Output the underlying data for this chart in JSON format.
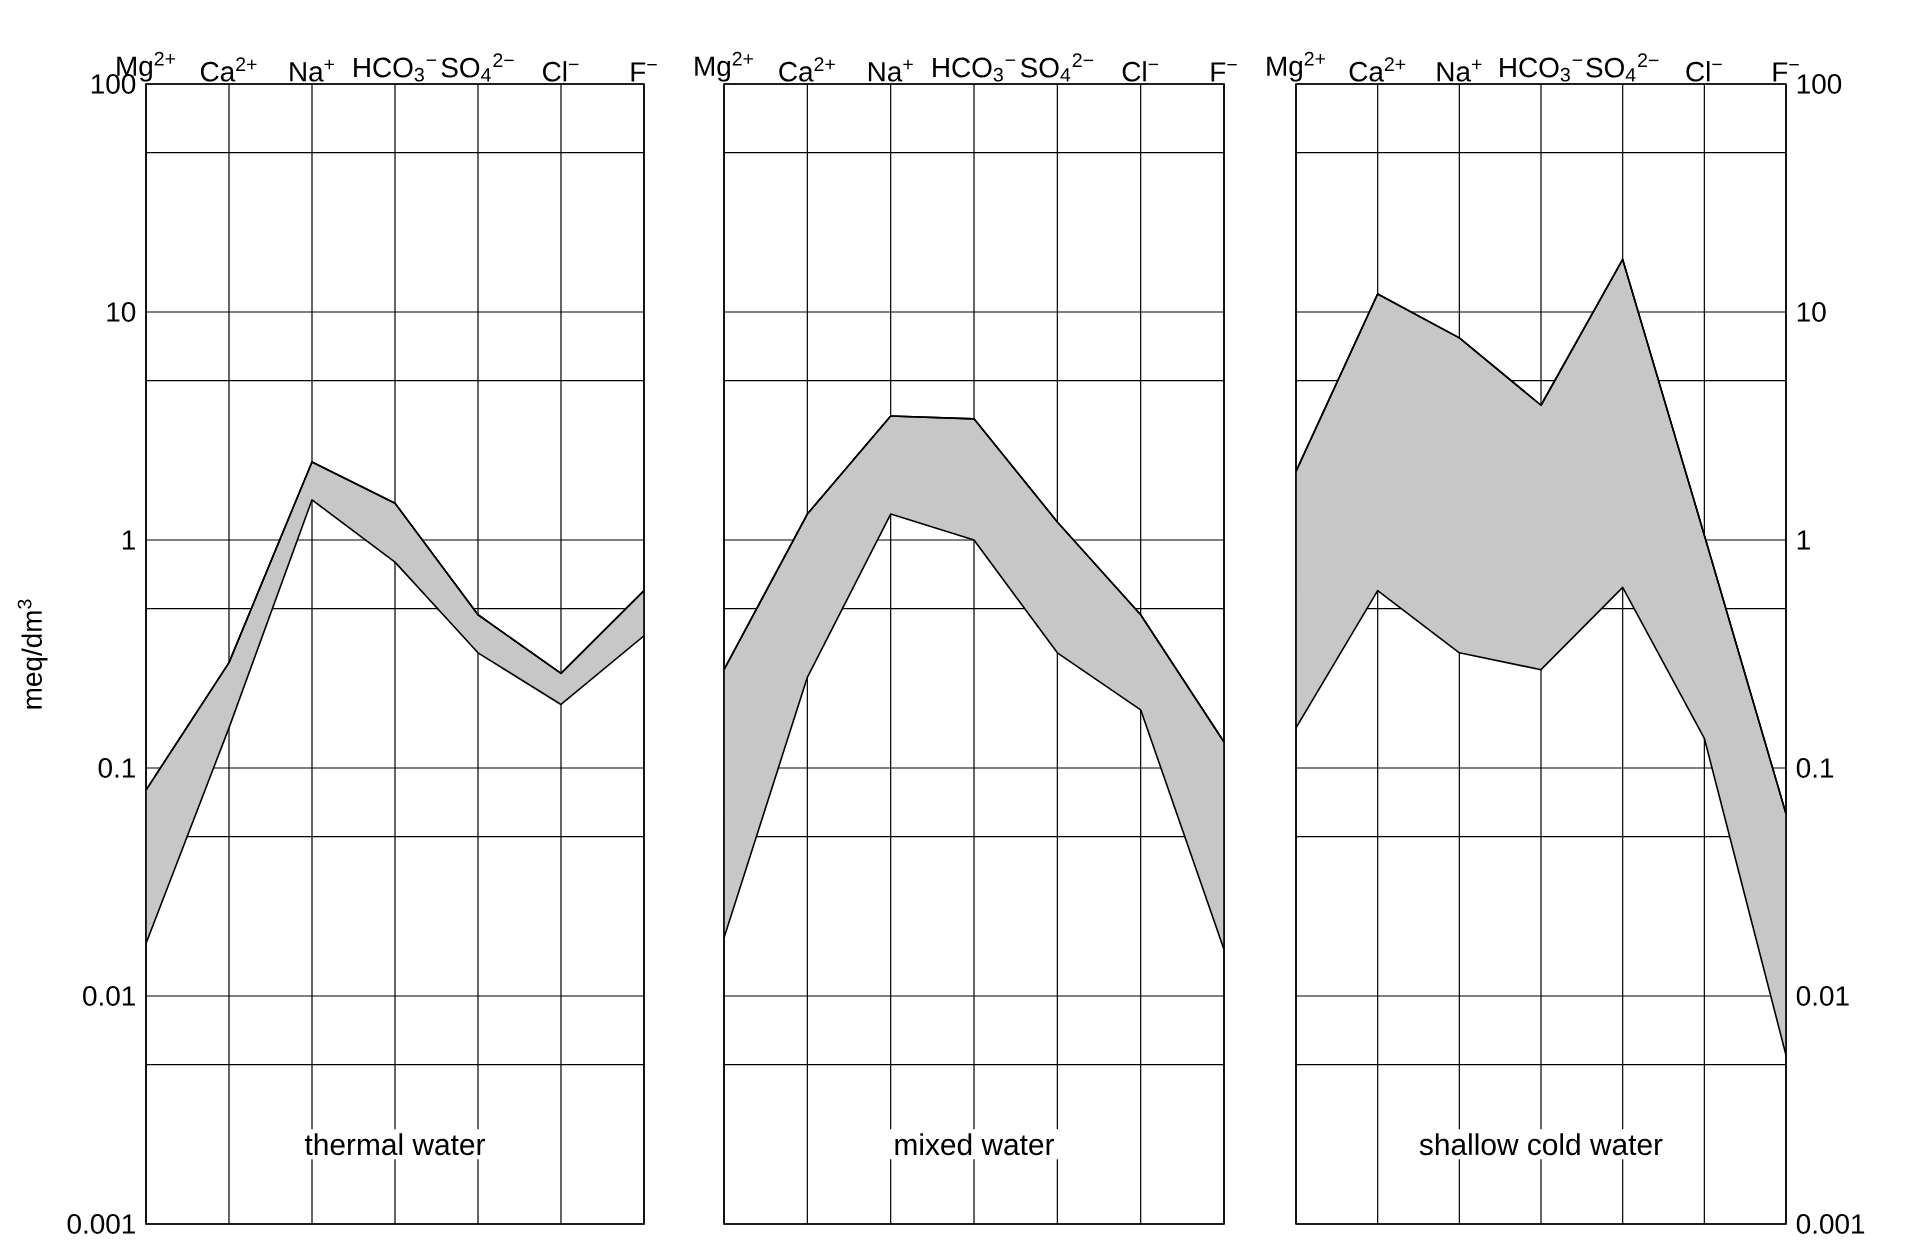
{
  "chart_data": [
    {
      "type": "line",
      "title": "thermal water",
      "ylabel": "meq/dm$^{3}$",
      "categories": [
        "Mg$^{2+}$",
        "Ca$^{2+}$",
        "Na$^{+}$",
        "HCO$_{3}$$^{−}$",
        "SO$_{4}$$^{2−}$",
        "Cl$^{−}$",
        "F$^{−}$"
      ],
      "series": [
        {
          "color": "#000000",
          "values": [
            0.08,
            0.29,
            2.2,
            1.45,
            0.47,
            0.26,
            0.6
          ],
          "lower": [
            0.017,
            0.15,
            1.5,
            0.8,
            0.32,
            0.19,
            0.38
          ],
          "upper": [
            0.08,
            0.29,
            2.2,
            1.45,
            0.47,
            0.26,
            0.6
          ]
        }
      ],
      "log": true,
      "ylim": [
        0.001,
        100
      ],
      "yticks": [
        0.001,
        {
          "value": 0.005,
          "label": null
        },
        0.01,
        {
          "value": 0.05,
          "label": null
        },
        0.1,
        {
          "value": 0.5,
          "label": null
        },
        1,
        {
          "value": 5,
          "label": null
        },
        10,
        {
          "value": 50,
          "label": null
        },
        100
      ],
      "grid": true
    },
    {
      "type": "line",
      "title": "mixed water",
      "categories": [
        "Mg$^{2+}$",
        "Ca$^{2+}$",
        "Na$^{+}$",
        "HCO$_{3}$$^{−}$",
        "SO$_{4}$$^{2−}$",
        "Cl$^{−}$",
        "F$^{−}$"
      ],
      "series": [
        {
          "color": "#000000",
          "values": [
            0.27,
            1.3,
            3.5,
            3.4,
            1.2,
            0.47,
            0.13
          ],
          "lower": [
            0.018,
            0.25,
            1.3,
            1.0,
            0.32,
            0.18,
            0.016
          ],
          "upper": [
            0.27,
            1.3,
            3.5,
            3.4,
            1.2,
            0.47,
            0.13
          ]
        }
      ],
      "log": true,
      "ylim": [
        0.001,
        100
      ],
      "yticks": [
        0.001,
        {
          "value": 0.005,
          "label": null
        },
        0.01,
        {
          "value": 0.05,
          "label": null
        },
        0.1,
        {
          "value": 0.5,
          "label": null
        },
        1,
        {
          "value": 5,
          "label": null
        },
        10,
        {
          "value": 50,
          "label": null
        },
        100
      ],
      "grid": true,
      "tick_labels": "x"
    },
    {
      "type": "line",
      "title": "shallow cold water",
      "categories": [
        "Mg$^{2+}$",
        "Ca$^{2+}$",
        "Na$^{+}$",
        "HCO$_{3}$$^{−}$",
        "SO$_{4}$$^{2−}$",
        "Cl$^{−}$",
        "F$^{−}$"
      ],
      "series": [
        {
          "color": "#000000",
          "axis": "y2",
          "values": [
            2.0,
            12,
            7.7,
            3.9,
            17,
            1.05,
            0.063
          ],
          "lower": [
            0.15,
            0.6,
            0.32,
            0.27,
            0.62,
            0.135,
            0.0055
          ],
          "upper": [
            2.0,
            12,
            7.7,
            3.9,
            17,
            1.05,
            0.063
          ]
        }
      ],
      "log": "y2",
      "y2lim": [
        0.001,
        100
      ],
      "y2ticks": [
        0.001,
        {
          "value": 0.005,
          "label": null
        },
        0.01,
        {
          "value": 0.05,
          "label": null
        },
        0.1,
        {
          "value": 0.5,
          "label": null
        },
        1,
        {
          "value": 5,
          "label": null
        },
        10,
        {
          "value": 50,
          "label": null
        },
        100
      ],
      "grid": true
    }
  ]
}
